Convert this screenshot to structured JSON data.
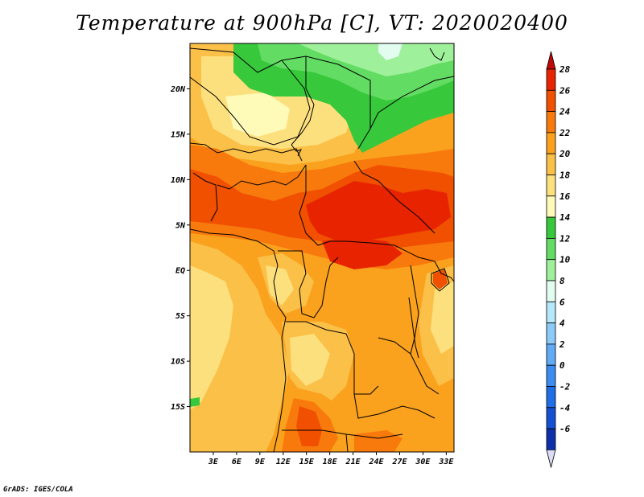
{
  "title": "Temperature at 900hPa [C], VT: 2020020400",
  "footer": "GrADS: IGES/COLA",
  "map": {
    "lon_range": [
      0,
      34
    ],
    "lat_range": [
      -20,
      25
    ],
    "x_ticks": [
      {
        "lon": 3,
        "label": "3E"
      },
      {
        "lon": 6,
        "label": "6E"
      },
      {
        "lon": 9,
        "label": "9E"
      },
      {
        "lon": 12,
        "label": "12E"
      },
      {
        "lon": 15,
        "label": "15E"
      },
      {
        "lon": 18,
        "label": "18E"
      },
      {
        "lon": 21,
        "label": "21E"
      },
      {
        "lon": 24,
        "label": "24E"
      },
      {
        "lon": 27,
        "label": "27E"
      },
      {
        "lon": 30,
        "label": "30E"
      },
      {
        "lon": 33,
        "label": "33E"
      }
    ],
    "y_ticks": [
      {
        "lat": 20,
        "label": "20N"
      },
      {
        "lat": 15,
        "label": "15N"
      },
      {
        "lat": 10,
        "label": "10N"
      },
      {
        "lat": 5,
        "label": "5N"
      },
      {
        "lat": 0,
        "label": "EQ"
      },
      {
        "lat": -5,
        "label": "5S"
      },
      {
        "lat": -10,
        "label": "10S"
      },
      {
        "lat": -15,
        "label": "15S"
      }
    ]
  },
  "colorbar": {
    "levels": [
      {
        "value": "28",
        "color": "#e82400"
      },
      {
        "value": "26",
        "color": "#f05000"
      },
      {
        "value": "24",
        "color": "#f87a0c"
      },
      {
        "value": "22",
        "color": "#faa21e"
      },
      {
        "value": "20",
        "color": "#fbc048"
      },
      {
        "value": "18",
        "color": "#fde07e"
      },
      {
        "value": "16",
        "color": "#fefab8"
      },
      {
        "value": "14",
        "color": "#38c83c"
      },
      {
        "value": "12",
        "color": "#62dc62"
      },
      {
        "value": "10",
        "color": "#9ef09a"
      },
      {
        "value": "8",
        "color": "#e2fcf0"
      },
      {
        "value": "6",
        "color": "#b4e8fa"
      },
      {
        "value": "4",
        "color": "#8ccaf8"
      },
      {
        "value": "2",
        "color": "#60aaf6"
      },
      {
        "value": "0",
        "color": "#3c8cf2"
      },
      {
        "value": "-2",
        "color": "#1e6ee6"
      },
      {
        "value": "-4",
        "color": "#1450d2"
      },
      {
        "value": "-6",
        "color": "#0c30aa"
      }
    ],
    "top_color": "#c00808",
    "bottom_tail_color": "#dcdcf8",
    "bottom_tip_color": "#0a1464"
  },
  "palette": {
    "t28": "#e82400",
    "t26": "#f05000",
    "t24": "#f87a0c",
    "t22": "#faa21e",
    "t20": "#fbc048",
    "t18": "#fde07e",
    "t16": "#fefab8",
    "t14": "#38c83c",
    "t12": "#62dc62",
    "t10": "#9ef09a",
    "t8": "#e2fcf0"
  }
}
